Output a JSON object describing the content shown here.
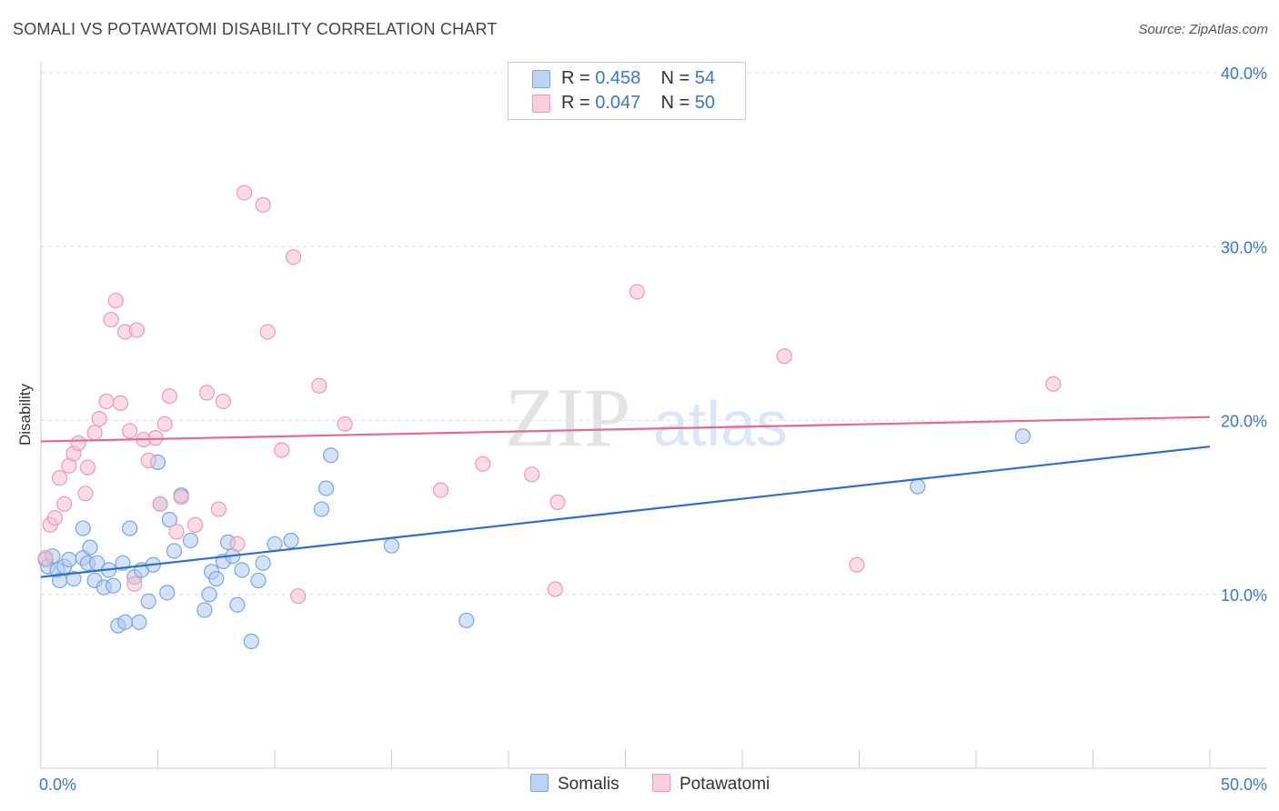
{
  "header": {
    "title": "SOMALI VS POTAWATOMI DISABILITY CORRELATION CHART",
    "source": "Source: ZipAtlas.com"
  },
  "watermark": {
    "part1": "ZIP",
    "part2": "atlas"
  },
  "legend": {
    "items": [
      {
        "r_label": "R =",
        "r_value": "0.458",
        "n_label": "N =",
        "n_value": "54"
      },
      {
        "r_label": "R =",
        "r_value": "0.047",
        "n_label": "N =",
        "n_value": "50"
      }
    ]
  },
  "colors": {
    "somali_fill": "#aecbf0",
    "somali_stroke": "#7aa6dd",
    "somali_line": "#2f6fcc",
    "potawatomi_fill": "#f7bfd0",
    "potawatomi_stroke": "#ee9ab5",
    "potawatomi_line": "#e36b93",
    "tick_label": "#3a78c9"
  },
  "chart_data": {
    "type": "scatter",
    "title": "SOMALI VS POTAWATOMI DISABILITY CORRELATION CHART",
    "xlabel": "",
    "ylabel": "Disability",
    "xlim": [
      0,
      50
    ],
    "ylim": [
      0,
      40
    ],
    "x_tick_labels": [
      "0.0%",
      "50.0%"
    ],
    "y_ticks": [
      10,
      20,
      30,
      40
    ],
    "y_tick_labels": [
      "10.0%",
      "20.0%",
      "30.0%",
      "40.0%"
    ],
    "legend_position": "top-center",
    "series": [
      {
        "name": "Somalis",
        "r": 0.458,
        "n": 54,
        "trend": {
          "x": [
            0,
            50
          ],
          "y": [
            11.0,
            18.5
          ]
        },
        "points": [
          [
            0.2,
            12.0
          ],
          [
            0.3,
            11.6
          ],
          [
            0.5,
            12.2
          ],
          [
            0.7,
            11.4
          ],
          [
            0.8,
            10.8
          ],
          [
            1.0,
            11.6
          ],
          [
            1.2,
            12.0
          ],
          [
            1.4,
            10.9
          ],
          [
            1.8,
            12.1
          ],
          [
            1.8,
            13.8
          ],
          [
            2.0,
            11.8
          ],
          [
            2.1,
            12.7
          ],
          [
            2.3,
            10.8
          ],
          [
            2.4,
            11.8
          ],
          [
            2.7,
            10.4
          ],
          [
            2.9,
            11.4
          ],
          [
            3.1,
            10.5
          ],
          [
            3.3,
            8.2
          ],
          [
            3.5,
            11.8
          ],
          [
            3.6,
            8.4
          ],
          [
            3.8,
            13.8
          ],
          [
            4.0,
            11.0
          ],
          [
            4.2,
            8.4
          ],
          [
            4.3,
            11.4
          ],
          [
            4.6,
            9.6
          ],
          [
            4.8,
            11.7
          ],
          [
            5.0,
            17.6
          ],
          [
            5.1,
            15.2
          ],
          [
            5.4,
            10.1
          ],
          [
            5.5,
            14.3
          ],
          [
            5.7,
            12.5
          ],
          [
            6.0,
            15.7
          ],
          [
            6.4,
            13.1
          ],
          [
            7.0,
            9.1
          ],
          [
            7.2,
            10.0
          ],
          [
            7.3,
            11.3
          ],
          [
            7.5,
            10.9
          ],
          [
            7.8,
            11.9
          ],
          [
            8.0,
            13.0
          ],
          [
            8.2,
            12.2
          ],
          [
            8.4,
            9.4
          ],
          [
            8.6,
            11.4
          ],
          [
            9.0,
            7.3
          ],
          [
            9.3,
            10.8
          ],
          [
            9.5,
            11.8
          ],
          [
            10.0,
            12.9
          ],
          [
            10.7,
            13.1
          ],
          [
            12.0,
            14.9
          ],
          [
            12.2,
            16.1
          ],
          [
            12.4,
            18.0
          ],
          [
            15.0,
            12.8
          ],
          [
            18.2,
            8.5
          ],
          [
            37.5,
            16.2
          ],
          [
            42.0,
            19.1
          ]
        ]
      },
      {
        "name": "Potawatomi",
        "r": 0.047,
        "n": 50,
        "trend": {
          "x": [
            0,
            50
          ],
          "y": [
            18.8,
            20.2
          ]
        },
        "points": [
          [
            0.2,
            12.1
          ],
          [
            0.4,
            14.0
          ],
          [
            0.6,
            14.4
          ],
          [
            0.8,
            16.7
          ],
          [
            1.0,
            15.2
          ],
          [
            1.2,
            17.4
          ],
          [
            1.4,
            18.1
          ],
          [
            1.6,
            18.7
          ],
          [
            1.9,
            15.8
          ],
          [
            2.0,
            17.3
          ],
          [
            2.3,
            19.3
          ],
          [
            2.5,
            20.1
          ],
          [
            2.8,
            21.1
          ],
          [
            3.0,
            25.8
          ],
          [
            3.2,
            26.9
          ],
          [
            3.4,
            21.0
          ],
          [
            3.6,
            25.1
          ],
          [
            3.8,
            19.4
          ],
          [
            4.0,
            10.6
          ],
          [
            4.1,
            25.2
          ],
          [
            4.4,
            18.9
          ],
          [
            4.6,
            17.7
          ],
          [
            4.9,
            19.0
          ],
          [
            5.1,
            15.2
          ],
          [
            5.3,
            19.8
          ],
          [
            5.5,
            21.4
          ],
          [
            5.8,
            13.6
          ],
          [
            6.0,
            15.6
          ],
          [
            6.6,
            14.0
          ],
          [
            7.1,
            21.6
          ],
          [
            7.6,
            14.9
          ],
          [
            7.8,
            21.1
          ],
          [
            8.4,
            12.9
          ],
          [
            8.7,
            33.1
          ],
          [
            9.5,
            32.4
          ],
          [
            9.7,
            25.1
          ],
          [
            10.3,
            18.3
          ],
          [
            10.8,
            29.4
          ],
          [
            11.0,
            9.9
          ],
          [
            11.9,
            22.0
          ],
          [
            13.0,
            19.8
          ],
          [
            17.1,
            16.0
          ],
          [
            18.9,
            17.5
          ],
          [
            21.0,
            16.9
          ],
          [
            22.0,
            10.3
          ],
          [
            22.1,
            15.3
          ],
          [
            25.5,
            27.4
          ],
          [
            31.8,
            23.7
          ],
          [
            34.9,
            11.7
          ],
          [
            43.3,
            22.1
          ]
        ]
      }
    ]
  },
  "bottom_legend": {
    "somali_label": "Somalis",
    "potawatomi_label": "Potawatomi"
  }
}
